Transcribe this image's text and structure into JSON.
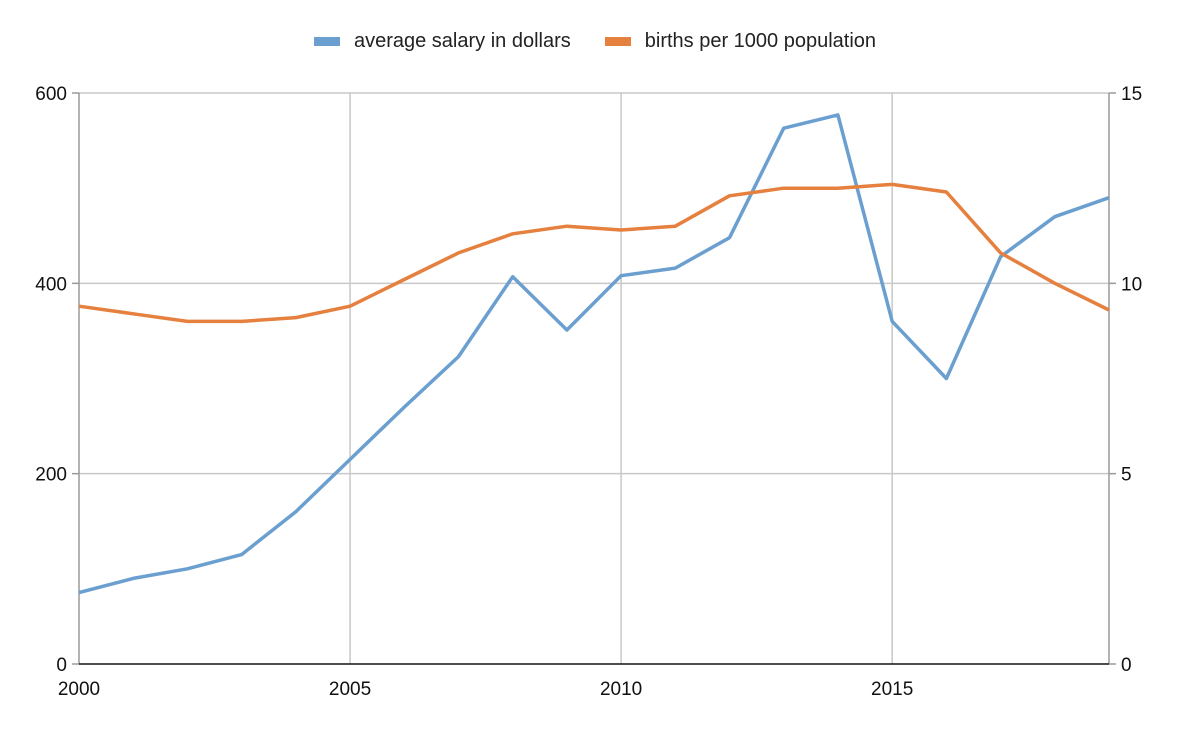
{
  "chart_data": {
    "type": "line",
    "x": [
      2000,
      2001,
      2002,
      2003,
      2004,
      2005,
      2006,
      2007,
      2008,
      2009,
      2010,
      2011,
      2012,
      2013,
      2014,
      2015,
      2016,
      2017,
      2018,
      2019
    ],
    "series": [
      {
        "name": "average salary in dollars",
        "axis": "left",
        "color": "#6a9fcf",
        "values": [
          75,
          90,
          100,
          115,
          160,
          215,
          270,
          323,
          407,
          351,
          408,
          416,
          448,
          563,
          577,
          360,
          300,
          428,
          470,
          490
        ]
      },
      {
        "name": "births per 1000 population",
        "axis": "right",
        "color": "#e5803f",
        "values": [
          9.4,
          9.2,
          9.0,
          9.0,
          9.1,
          9.4,
          10.1,
          10.8,
          11.3,
          11.5,
          11.4,
          11.5,
          12.3,
          12.5,
          12.5,
          12.6,
          12.4,
          10.8,
          10.0,
          9.3
        ]
      }
    ],
    "xlim": [
      2000,
      2019
    ],
    "x_ticks": [
      "2000",
      "2005",
      "2010",
      "2015"
    ],
    "y_left": {
      "lim": [
        0,
        600
      ],
      "ticks": [
        "0",
        "200",
        "400",
        "600"
      ]
    },
    "y_right": {
      "lim": [
        0,
        15
      ],
      "ticks": [
        "0",
        "5",
        "10",
        "15"
      ]
    },
    "grid": true,
    "legend_position": "top-center"
  }
}
